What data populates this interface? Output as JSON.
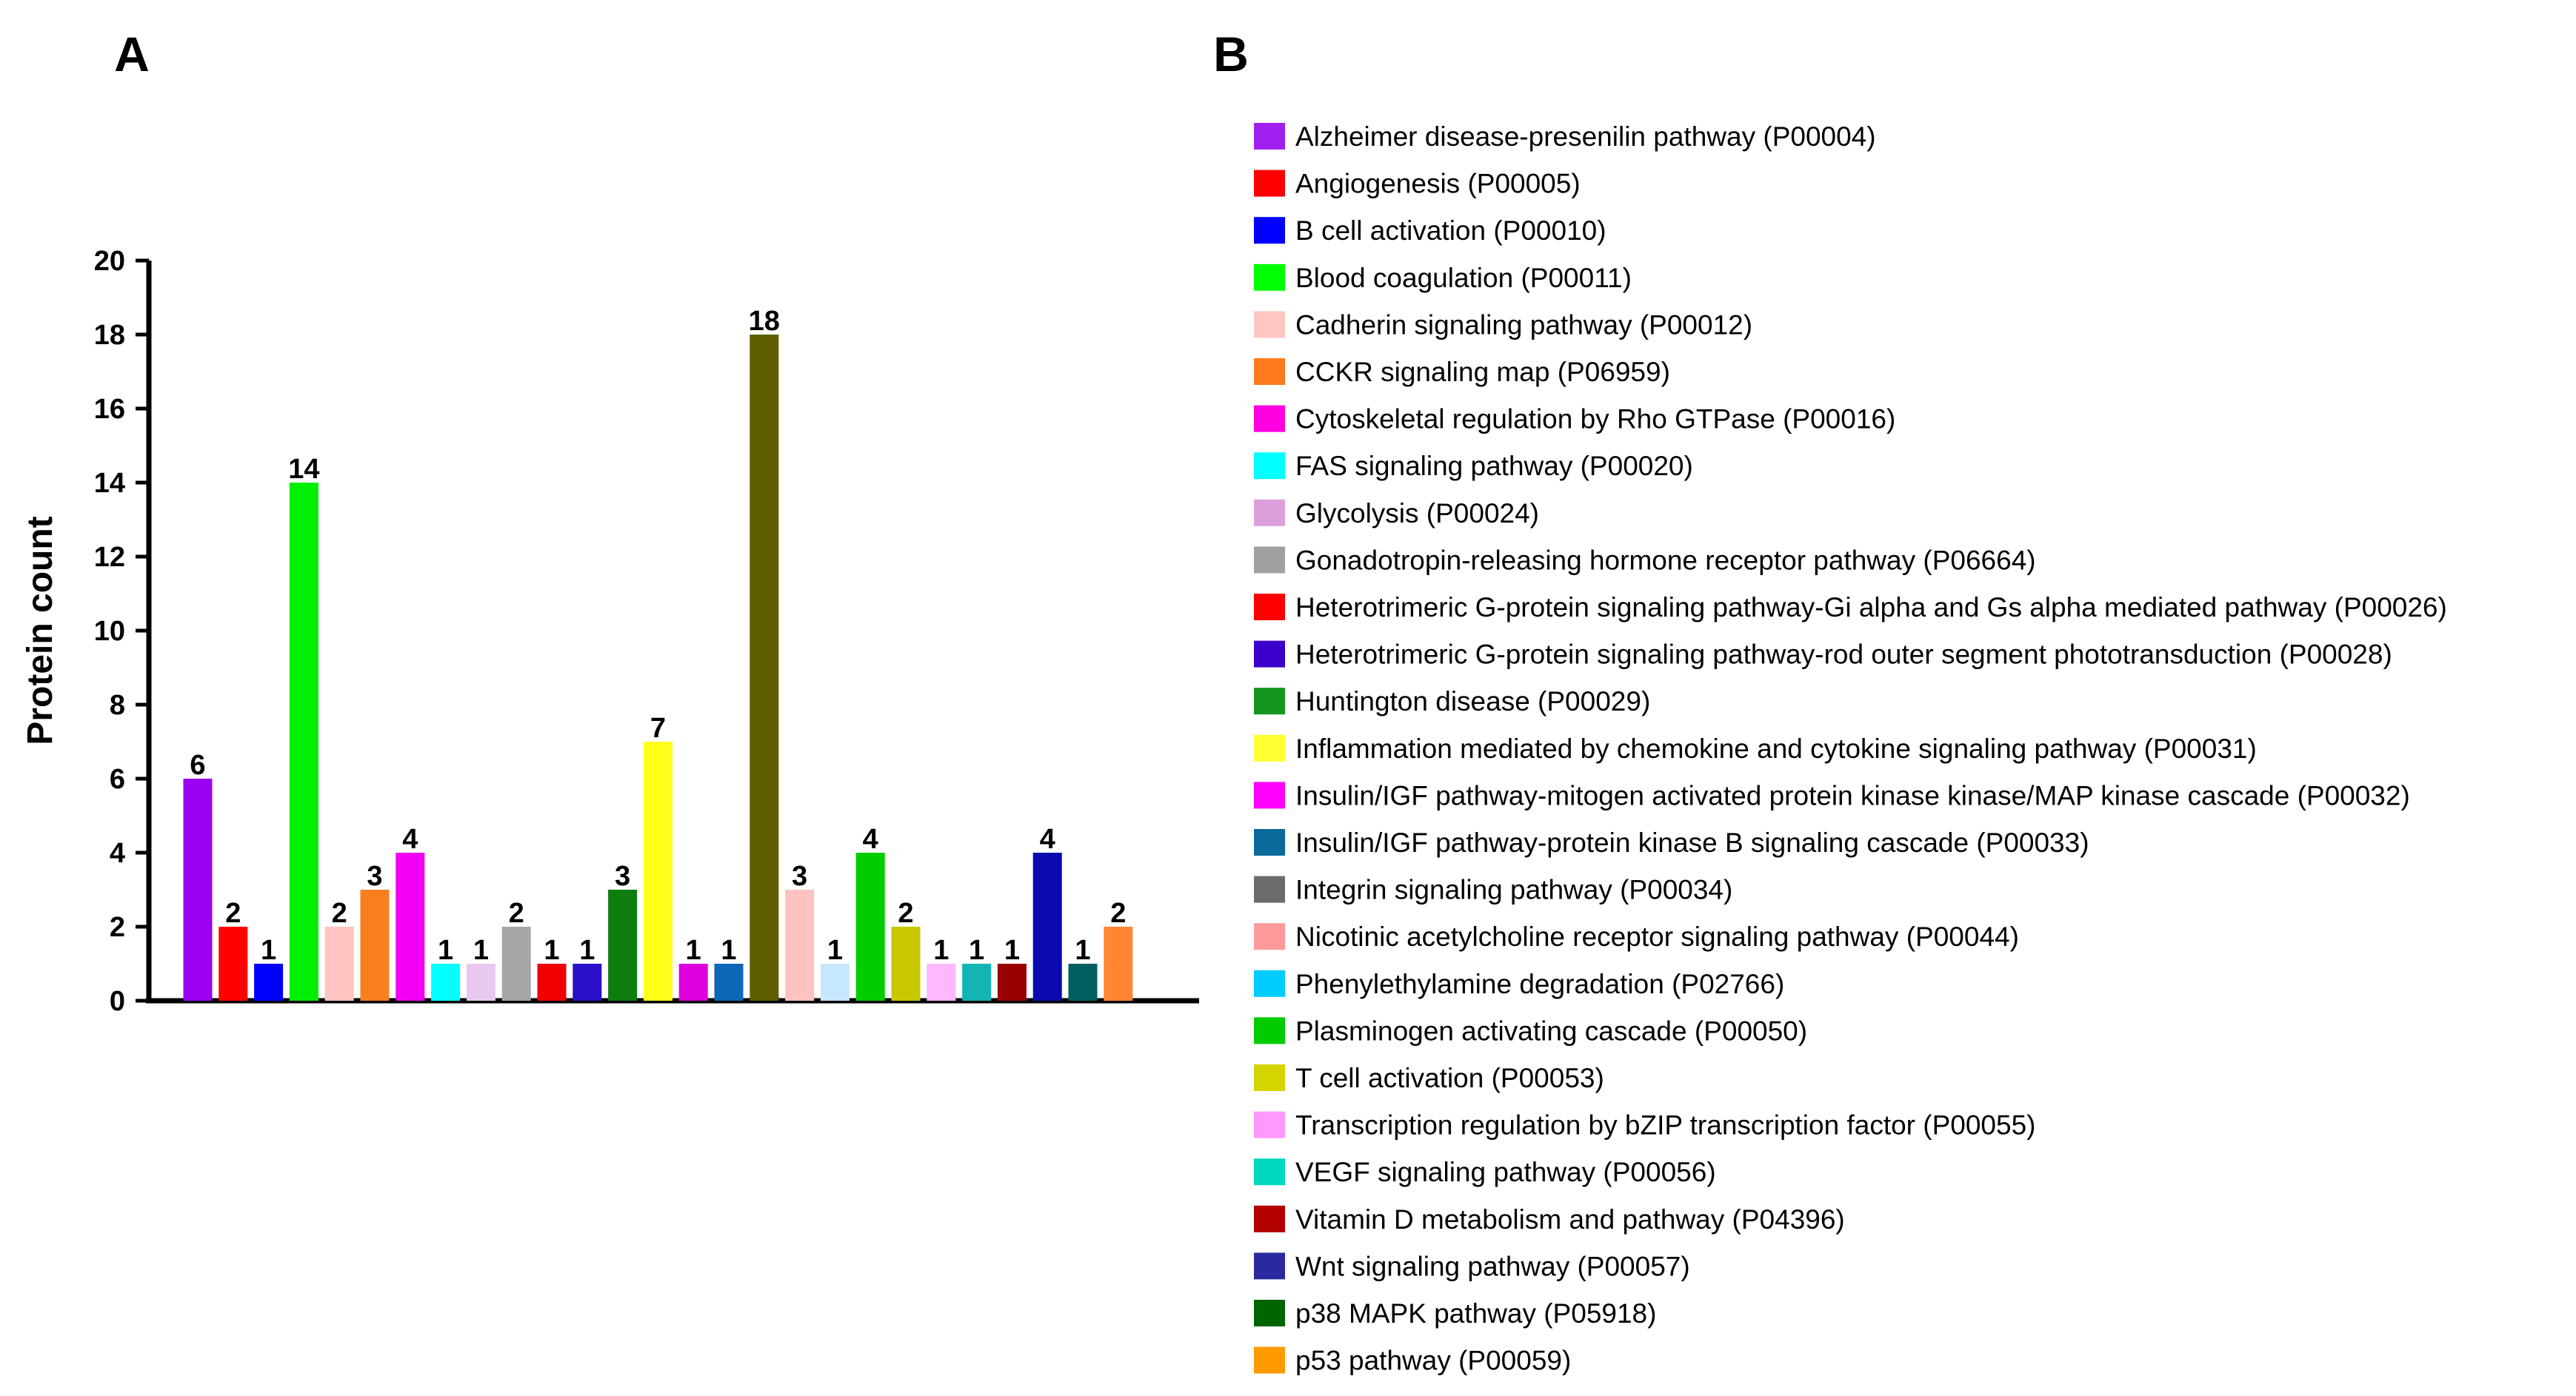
{
  "chart_data": {
    "type": "bar",
    "panel_a_label": "A",
    "panel_b_label": "B",
    "ylabel": "Protein count",
    "xlabel": "",
    "ylim": [
      0,
      20
    ],
    "yticks": [
      0,
      2,
      4,
      6,
      8,
      10,
      12,
      14,
      16,
      18,
      20
    ],
    "grid": false,
    "legend_position": "right",
    "categories": [
      "Alzheimer disease-presenilin pathway (P00004)",
      "Angiogenesis (P00005)",
      "B cell activation (P00010)",
      "Blood coagulation (P00011)",
      "Cadherin signaling pathway (P00012)",
      "CCKR signaling map (P06959)",
      "Cytoskeletal regulation by Rho GTPase (P00016)",
      "FAS signaling pathway (P00020)",
      "Glycolysis (P00024)",
      "Gonadotropin-releasing hormone receptor pathway (P06664)",
      "Heterotrimeric G-protein signaling pathway-Gi alpha and Gs alpha mediated pathway (P00026)",
      "Heterotrimeric G-protein signaling pathway-rod outer segment phototransduction (P00028)",
      "Huntington disease (P00029)",
      "Inflammation mediated by chemokine and cytokine signaling pathway (P00031)",
      "Insulin/IGF pathway-mitogen activated protein kinase kinase/MAP kinase cascade (P00032)",
      "Insulin/IGF pathway-protein kinase B signaling cascade (P00033)",
      "Integrin signaling pathway (P00034)",
      "Nicotinic acetylcholine receptor signaling pathway (P00044)",
      "Phenylethylamine degradation (P02766)",
      "Plasminogen activating cascade (P00050)",
      "T cell activation (P00053)",
      "Transcription regulation by bZIP transcription factor (P00055)",
      "VEGF signaling pathway (P00056)",
      "Vitamin D metabolism and pathway (P04396)",
      "Wnt signaling pathway (P00057)",
      "p38 MAPK pathway (P05918)",
      "p53 pathway (P00059)"
    ],
    "bars": [
      {
        "value": 6,
        "color": "#9b00f2"
      },
      {
        "value": 2,
        "color": "#ff0000"
      },
      {
        "value": 1,
        "color": "#0000ff"
      },
      {
        "value": 14,
        "color": "#00f000"
      },
      {
        "value": 2,
        "color": "#ffc4bf"
      },
      {
        "value": 3,
        "color": "#f77f1f"
      },
      {
        "value": 4,
        "color": "#f200f2"
      },
      {
        "value": 1,
        "color": "#00ffff"
      },
      {
        "value": 1,
        "color": "#e8c8f0"
      },
      {
        "value": 2,
        "color": "#a6a6a6"
      },
      {
        "value": 1,
        "color": "#f00000"
      },
      {
        "value": 1,
        "color": "#2a10c8"
      },
      {
        "value": 3,
        "color": "#0e7c0e"
      },
      {
        "value": 7,
        "color": "#ffff1a"
      },
      {
        "value": 1,
        "color": "#dd00dd"
      },
      {
        "value": 1,
        "color": "#0c68b6"
      },
      {
        "value": 18,
        "color": "#5e5e00"
      },
      {
        "value": 3,
        "color": "#ffc2c2"
      },
      {
        "value": 1,
        "color": "#c7e7ff"
      },
      {
        "value": 4,
        "color": "#00cd00"
      },
      {
        "value": 2,
        "color": "#c8c800"
      },
      {
        "value": 1,
        "color": "#ffb7ff"
      },
      {
        "value": 1,
        "color": "#12b4b4"
      },
      {
        "value": 1,
        "color": "#990000"
      },
      {
        "value": 4,
        "color": "#0a0ab0"
      },
      {
        "value": 1,
        "color": "#005f5f"
      },
      {
        "value": 2,
        "color": "#ff8533"
      }
    ],
    "legend": [
      {
        "label": "Alzheimer disease-presenilin pathway (P00004)",
        "color": "#a020f0"
      },
      {
        "label": "Angiogenesis (P00005)",
        "color": "#ff0000"
      },
      {
        "label": "B cell activation (P00010)",
        "color": "#0000ff"
      },
      {
        "label": "Blood coagulation (P00011)",
        "color": "#00ff00"
      },
      {
        "label": "Cadherin signaling pathway (P00012)",
        "color": "#ffc7c0"
      },
      {
        "label": "CCKR signaling map (P06959)",
        "color": "#ff7a1c"
      },
      {
        "label": "Cytoskeletal regulation by Rho GTPase (P00016)",
        "color": "#ff00e0"
      },
      {
        "label": "FAS signaling pathway (P00020)",
        "color": "#00ffff"
      },
      {
        "label": "Glycolysis (P00024)",
        "color": "#dda0dd"
      },
      {
        "label": "Gonadotropin-releasing hormone receptor pathway (P06664)",
        "color": "#a0a0a0"
      },
      {
        "label": "Heterotrimeric G-protein signaling pathway-Gi alpha and Gs alpha mediated pathway (P00026)",
        "color": "#ff0000"
      },
      {
        "label": "Heterotrimeric G-protein signaling pathway-rod outer segment phototransduction (P00028)",
        "color": "#3d00cc"
      },
      {
        "label": "Huntington disease (P00029)",
        "color": "#14961e"
      },
      {
        "label": "Inflammation mediated by chemokine and cytokine signaling pathway (P00031)",
        "color": "#ffff33"
      },
      {
        "label": "Insulin/IGF pathway-mitogen activated protein kinase kinase/MAP kinase cascade (P00032)",
        "color": "#ff00ff"
      },
      {
        "label": "Insulin/IGF pathway-protein kinase B signaling cascade (P00033)",
        "color": "#0a6a9a"
      },
      {
        "label": "Integrin signaling pathway (P00034)",
        "color": "#6b6b6b"
      },
      {
        "label": "Nicotinic acetylcholine receptor signaling pathway (P00044)",
        "color": "#ff9a9a"
      },
      {
        "label": "Phenylethylamine degradation (P02766)",
        "color": "#00ccff"
      },
      {
        "label": "Plasminogen activating cascade (P00050)",
        "color": "#00cc00"
      },
      {
        "label": "T cell activation (P00053)",
        "color": "#d4d400"
      },
      {
        "label": "Transcription regulation by bZIP transcription factor (P00055)",
        "color": "#ff99ff"
      },
      {
        "label": "VEGF signaling pathway (P00056)",
        "color": "#00d8c0"
      },
      {
        "label": "Vitamin D metabolism and pathway (P04396)",
        "color": "#b30000"
      },
      {
        "label": "Wnt signaling pathway (P00057)",
        "color": "#2a2aa0"
      },
      {
        "label": "p38 MAPK pathway (P05918)",
        "color": "#006400"
      },
      {
        "label": "p53 pathway (P00059)",
        "color": "#ff9900"
      }
    ]
  }
}
